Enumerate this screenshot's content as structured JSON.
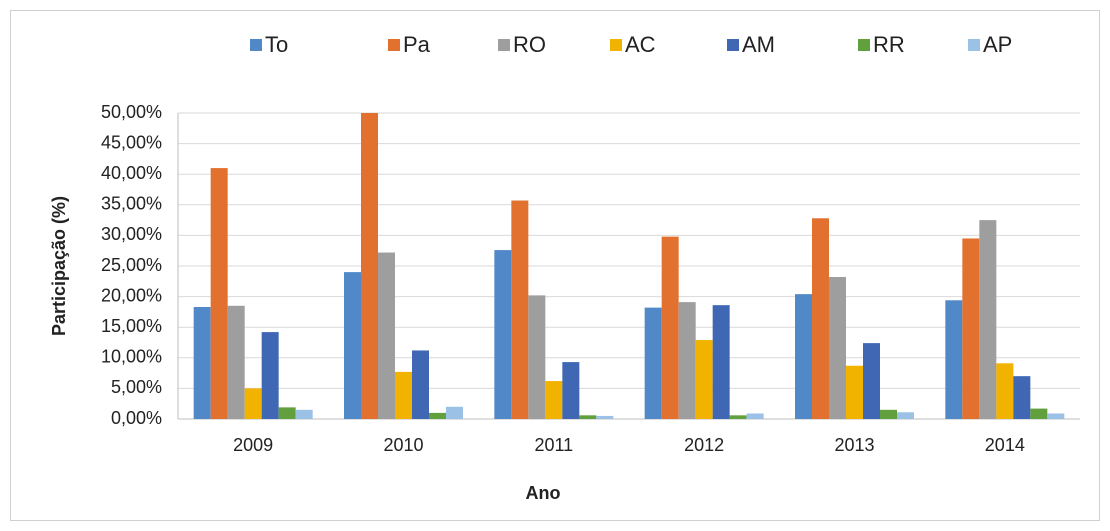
{
  "chart_data": {
    "type": "bar",
    "categories": [
      "2009",
      "2010",
      "2011",
      "2012",
      "2013",
      "2014"
    ],
    "series": [
      {
        "name": "To",
        "color": "#5189c8",
        "values": [
          18.3,
          24.0,
          27.6,
          18.2,
          20.4,
          19.4
        ]
      },
      {
        "name": "Pa",
        "color": "#e2712f",
        "values": [
          41.0,
          50.0,
          35.7,
          29.8,
          32.8,
          29.5
        ]
      },
      {
        "name": "RO",
        "color": "#9e9e9e",
        "values": [
          18.5,
          27.2,
          20.2,
          19.1,
          23.2,
          32.5
        ]
      },
      {
        "name": "AC",
        "color": "#f2b200",
        "values": [
          5.0,
          7.7,
          6.2,
          12.9,
          8.7,
          9.1
        ]
      },
      {
        "name": "AM",
        "color": "#3f67b4",
        "values": [
          14.2,
          11.2,
          9.3,
          18.6,
          12.4,
          7.0
        ]
      },
      {
        "name": "RR",
        "color": "#62a03d",
        "values": [
          1.9,
          1.0,
          0.6,
          0.6,
          1.5,
          1.7
        ]
      },
      {
        "name": "AP",
        "color": "#9cc1e7",
        "values": [
          1.5,
          2.0,
          0.5,
          0.9,
          1.1,
          0.9
        ]
      }
    ],
    "xlabel": "Ano",
    "ylabel": "Participação (%)",
    "ylim": [
      0,
      50
    ],
    "yticks": [
      {
        "value": 0,
        "label": "0,00%"
      },
      {
        "value": 5,
        "label": "5,00%"
      },
      {
        "value": 10,
        "label": "10,00%"
      },
      {
        "value": 15,
        "label": "15,00%"
      },
      {
        "value": 20,
        "label": "20,00%"
      },
      {
        "value": 25,
        "label": "25,00%"
      },
      {
        "value": 30,
        "label": "30,00%"
      },
      {
        "value": 35,
        "label": "35,00%"
      },
      {
        "value": 40,
        "label": "40,00%"
      },
      {
        "value": 45,
        "label": "45,00%"
      },
      {
        "value": 50,
        "label": "50,00%"
      }
    ],
    "grid": true,
    "legend": "top"
  }
}
